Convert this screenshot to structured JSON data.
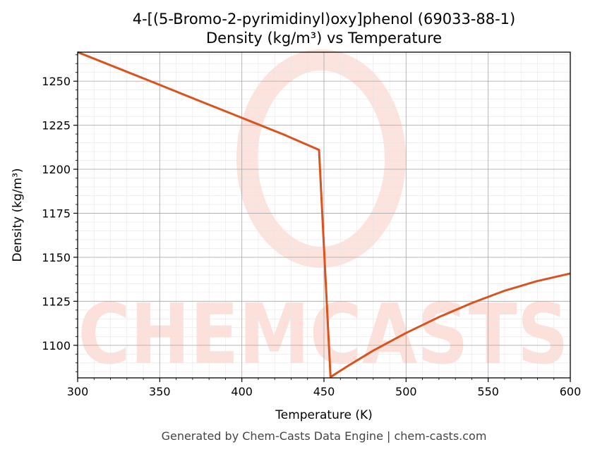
{
  "colors": {
    "line": "#d9531e",
    "watermark": "#fde0da",
    "grid_major": "#b0b0b0",
    "grid_minor": "#e6e6e6",
    "footer": "#444444"
  },
  "watermark": {
    "text": "CHEMCASTS"
  },
  "footer": "Generated by Chem-Casts Data Engine | chem-casts.com",
  "chart_data": {
    "type": "line",
    "title": "4-[(5-Bromo-2-pyrimidinyl)oxy]phenol (69033-88-1)",
    "subtitle": "Density (kg/m³) vs Temperature",
    "xlabel": "Temperature (K)",
    "ylabel": "Density (kg/m³)",
    "xlim": [
      300,
      600
    ],
    "ylim": [
      1081.5,
      1266.5
    ],
    "xticks": [
      300,
      350,
      400,
      450,
      500,
      550,
      600
    ],
    "yticks": [
      1100,
      1125,
      1150,
      1175,
      1200,
      1225,
      1250
    ],
    "grid": true,
    "legend": "none",
    "series": [
      {
        "x": [
          300,
          325,
          350,
          375,
          400,
          425,
          447,
          454,
          465,
          480,
          500,
          520,
          540,
          560,
          580,
          600
        ],
        "y": [
          1266.5,
          1257.2,
          1247.9,
          1238.5,
          1229.2,
          1219.9,
          1211.0,
          1082.0,
          1088.5,
          1097.0,
          1107.0,
          1116.0,
          1124.0,
          1131.0,
          1136.5,
          1140.8
        ]
      }
    ]
  }
}
